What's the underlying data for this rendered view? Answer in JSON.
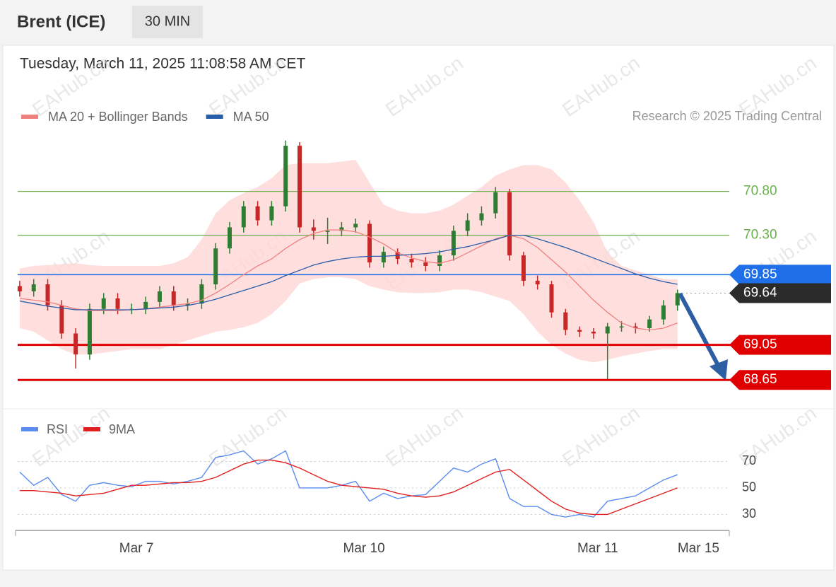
{
  "header": {
    "title": "Brent (ICE)",
    "interval": "30 MIN"
  },
  "timestamp": "Tuesday, March 11, 2025 11:08:58 AM CET",
  "credit": "Research © 2025 Trading Central",
  "watermark": "EAHub.cn",
  "chart_data": [
    {
      "type": "candlestick",
      "up_color": "#2e7d32",
      "down_color": "#c62828",
      "band_color": "#ffd6d6",
      "xlim": [
        -0.5,
        50.7
      ],
      "ylim": [
        68.45,
        71.45
      ],
      "candles": {
        "open": [
          69.72,
          69.66,
          69.74,
          69.5,
          69.18,
          68.94,
          69.46,
          69.58,
          69.46,
          69.46,
          69.54,
          69.66,
          69.5,
          69.52,
          69.74,
          70.15,
          70.39,
          70.63,
          70.47,
          70.63,
          71.32,
          70.39,
          70.35,
          70.35,
          70.39,
          70.43,
          69.99,
          70.11,
          70.03,
          69.99,
          69.95,
          70.07,
          70.35,
          70.47,
          70.55,
          70.79,
          70.07,
          69.78,
          69.74,
          69.42,
          69.22,
          69.2,
          69.18,
          69.26,
          69.26,
          69.24,
          69.34,
          69.5
        ],
        "high": [
          69.78,
          69.8,
          69.8,
          69.56,
          69.24,
          69.52,
          69.64,
          69.64,
          69.52,
          69.6,
          69.72,
          69.72,
          69.58,
          69.8,
          70.21,
          70.45,
          70.69,
          70.69,
          70.69,
          71.38,
          71.36,
          70.48,
          70.5,
          70.45,
          70.49,
          70.47,
          70.17,
          70.15,
          70.09,
          70.05,
          70.13,
          70.41,
          70.55,
          70.63,
          70.85,
          70.83,
          70.11,
          69.84,
          69.78,
          69.46,
          69.26,
          69.24,
          69.3,
          69.32,
          69.3,
          69.38,
          69.56,
          69.68
        ],
        "low": [
          69.6,
          69.6,
          69.44,
          69.12,
          68.78,
          68.88,
          69.4,
          69.4,
          69.4,
          69.4,
          69.48,
          69.44,
          69.44,
          69.46,
          69.68,
          70.09,
          70.33,
          70.41,
          70.41,
          70.57,
          70.33,
          70.25,
          70.2,
          70.29,
          70.33,
          69.93,
          69.93,
          69.97,
          69.93,
          69.89,
          69.89,
          70.01,
          70.29,
          70.41,
          70.49,
          70.01,
          69.72,
          69.68,
          69.36,
          69.16,
          69.14,
          69.12,
          68.66,
          69.2,
          69.18,
          69.2,
          69.28,
          69.44
        ],
        "close": [
          69.66,
          69.74,
          69.5,
          69.18,
          68.94,
          69.46,
          69.58,
          69.46,
          69.46,
          69.54,
          69.66,
          69.5,
          69.52,
          69.74,
          70.15,
          70.39,
          70.63,
          70.47,
          70.63,
          71.32,
          70.39,
          70.35,
          70.35,
          70.39,
          70.43,
          69.99,
          70.11,
          70.03,
          69.99,
          69.95,
          70.07,
          70.35,
          70.47,
          70.55,
          70.79,
          70.07,
          69.78,
          69.74,
          69.42,
          69.22,
          69.2,
          69.18,
          69.26,
          69.26,
          69.24,
          69.34,
          69.5,
          69.64
        ]
      },
      "series": [
        {
          "name": "MA 20 + Bollinger Bands",
          "color": "#f08080",
          "values": [
            69.58,
            69.56,
            69.54,
            69.5,
            69.46,
            69.44,
            69.44,
            69.44,
            69.45,
            69.46,
            69.48,
            69.5,
            69.52,
            69.56,
            69.64,
            69.74,
            69.85,
            69.95,
            70.03,
            70.15,
            70.25,
            70.32,
            70.36,
            70.36,
            70.34,
            70.28,
            70.2,
            70.1,
            70.04,
            70.0,
            69.98,
            70.02,
            70.1,
            70.18,
            70.26,
            70.3,
            70.26,
            70.16,
            70.02,
            69.88,
            69.72,
            69.56,
            69.42,
            69.3,
            69.24,
            69.22,
            69.24,
            69.3
          ],
          "upper": [
            69.92,
            69.95,
            69.96,
            69.97,
            69.98,
            69.96,
            69.95,
            69.95,
            69.95,
            69.95,
            69.95,
            69.98,
            70.05,
            70.25,
            70.55,
            70.7,
            70.78,
            70.85,
            70.95,
            71.1,
            71.12,
            71.12,
            71.12,
            71.14,
            71.16,
            70.9,
            70.65,
            70.58,
            70.55,
            70.55,
            70.58,
            70.65,
            70.75,
            70.85,
            70.98,
            71.05,
            71.1,
            71.1,
            71.05,
            70.9,
            70.7,
            70.45,
            70.1,
            69.95,
            69.9,
            69.85,
            69.8,
            69.8
          ],
          "lower": [
            69.24,
            69.2,
            69.1,
            69.0,
            68.94,
            68.94,
            68.96,
            68.98,
            69.0,
            69.0,
            69.0,
            69.05,
            69.1,
            69.15,
            69.2,
            69.22,
            69.25,
            69.3,
            69.4,
            69.55,
            69.75,
            69.8,
            69.82,
            69.82,
            69.8,
            69.72,
            69.68,
            69.65,
            69.64,
            69.64,
            69.65,
            69.68,
            69.68,
            69.65,
            69.6,
            69.55,
            69.4,
            69.2,
            69.05,
            68.95,
            68.88,
            68.85,
            68.88,
            68.92,
            68.95,
            68.98,
            69.0,
            69.0
          ]
        },
        {
          "name": "MA 50",
          "color": "#2a5ca8",
          "values": [
            69.55,
            69.52,
            69.49,
            69.47,
            69.45,
            69.45,
            69.45,
            69.45,
            69.45,
            69.46,
            69.47,
            69.48,
            69.5,
            69.53,
            69.57,
            69.62,
            69.67,
            69.72,
            69.77,
            69.84,
            69.9,
            69.96,
            70.0,
            70.03,
            70.05,
            70.06,
            70.06,
            70.07,
            70.08,
            70.09,
            70.11,
            70.14,
            70.17,
            70.21,
            70.25,
            70.3,
            70.3,
            70.26,
            70.21,
            70.16,
            70.1,
            70.04,
            69.98,
            69.92,
            69.86,
            69.81,
            69.77,
            69.74
          ]
        }
      ],
      "levels": [
        {
          "value": 70.8,
          "label": "70.80",
          "color": "#6ab04c",
          "style": "text"
        },
        {
          "value": 70.3,
          "label": "70.30",
          "color": "#6ab04c",
          "style": "text"
        },
        {
          "value": 69.85,
          "label": "69.85",
          "color": "#1e6fe8",
          "style": "badge"
        },
        {
          "value": 69.64,
          "label": "69.64",
          "color": "#2b2b2b",
          "style": "badge-dotted"
        },
        {
          "value": 69.05,
          "label": "69.05",
          "color": "#e00000",
          "style": "badge"
        },
        {
          "value": 68.65,
          "label": "68.65",
          "color": "#e00000",
          "style": "badge"
        }
      ]
    },
    {
      "type": "line",
      "xlim": [
        -0.5,
        50.7
      ],
      "ylim": [
        19,
        82
      ],
      "yticks": [
        30,
        50,
        70
      ],
      "xticks": [
        {
          "value": 8.34,
          "label": "Mar 7"
        },
        {
          "value": 24.6,
          "label": "Mar 10"
        },
        {
          "value": 41.3,
          "label": "Mar 11"
        },
        {
          "value": 48.5,
          "label": "Mar 15"
        }
      ],
      "series": [
        {
          "name": "RSI",
          "color": "#5b8def",
          "values": [
            62,
            52,
            58,
            45,
            40,
            52,
            54,
            52,
            51,
            55,
            55,
            53,
            55,
            58,
            73,
            75,
            78,
            68,
            72,
            78,
            50,
            50,
            50,
            52,
            55,
            40,
            46,
            42,
            44,
            45,
            55,
            65,
            62,
            68,
            72,
            42,
            36,
            36,
            30,
            28,
            30,
            28,
            40,
            42,
            44,
            50,
            56,
            60
          ]
        },
        {
          "name": "9MA",
          "color": "#e02020",
          "values": [
            48,
            48,
            47,
            46,
            44,
            45,
            46,
            49,
            52,
            52,
            53,
            54,
            54,
            55,
            58,
            63,
            68,
            71,
            71,
            69,
            65,
            60,
            55,
            52,
            51,
            50,
            49,
            46,
            44,
            43,
            44,
            47,
            52,
            57,
            62,
            64,
            56,
            48,
            40,
            34,
            31,
            30,
            30,
            34,
            38,
            42,
            46,
            50
          ]
        }
      ]
    }
  ]
}
